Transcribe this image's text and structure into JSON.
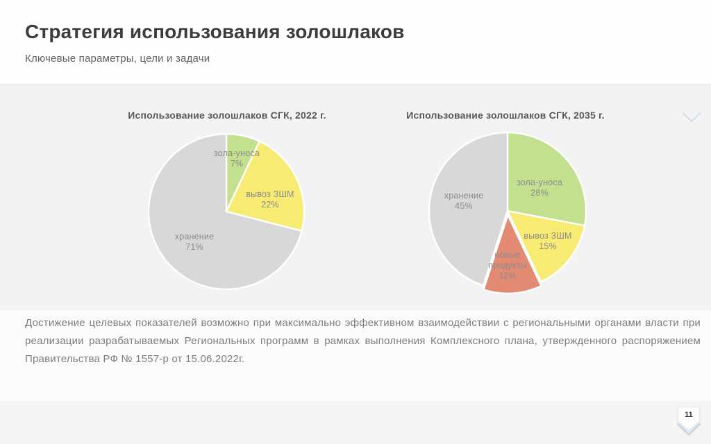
{
  "slide": {
    "title": "Стратегия использования золошлаков",
    "subtitle": "Ключевые параметры, цели и задачи",
    "page_number": "11",
    "body_text": "Достижение целевых показателей возможно при максимально эффективном взаимодействии с региональными органами власти при реализации разрабатываемых Региональных программ в рамках выполнения Комплексного плана, утвержденного распоряжением Правительства РФ № 1557-р от 15.06.2022г."
  },
  "colors": {
    "green": "#c3e08f",
    "yellow": "#f8eb74",
    "gray": "#d9d8d9",
    "salmon": "#e28b72",
    "accent_blue": "#b5d0e2"
  },
  "chart_data": [
    {
      "type": "pie",
      "title": "Использование золошлаков СГК, 2022 г.",
      "labels": [
        "зола-уноса",
        "вывоз ЗШМ",
        "хранение"
      ],
      "values": [
        7,
        22,
        71
      ],
      "pcts": [
        "7%",
        "22%",
        "71%"
      ],
      "colors": [
        "#c3e08f",
        "#f8eb74",
        "#d9d8d9"
      ],
      "start_angle_deg": -90,
      "direction": "clockwise",
      "legend": "labels drawn on slices"
    },
    {
      "type": "pie",
      "title": "Использование золошлаков СГК, 2035 г.",
      "labels": [
        "зола-уноса",
        "вывоз ЗШМ",
        "новые продукты",
        "хранение"
      ],
      "values": [
        28,
        15,
        12,
        45
      ],
      "pcts": [
        "28%",
        "15%",
        "12%",
        "45%"
      ],
      "colors": [
        "#c3e08f",
        "#f8eb74",
        "#e28b72",
        "#d9d8d9"
      ],
      "exploded_index": 2,
      "start_angle_deg": -90,
      "direction": "clockwise",
      "legend": "labels drawn on slices"
    }
  ]
}
